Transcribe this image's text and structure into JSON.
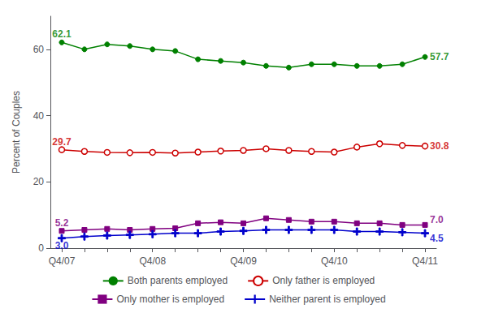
{
  "chart_data": {
    "type": "line",
    "categories": [
      "Q4/07",
      null,
      null,
      null,
      "Q4/08",
      null,
      null,
      null,
      "Q4/09",
      null,
      null,
      null,
      "Q4/10",
      null,
      null,
      null,
      "Q4/11"
    ],
    "series": [
      {
        "name": "Both parents employed",
        "color": "#008000",
        "marker": "circle",
        "values": [
          62.1,
          60.0,
          61.5,
          61.0,
          60.0,
          59.5,
          57.0,
          56.5,
          56.0,
          55.0,
          54.5,
          55.5,
          55.5,
          55.0,
          55.0,
          55.5,
          57.7
        ]
      },
      {
        "name": "Only father is employed",
        "color": "#cc0000",
        "marker": "open_circle",
        "values": [
          29.7,
          29.2,
          28.9,
          28.8,
          28.9,
          28.7,
          29.0,
          29.3,
          29.5,
          30.0,
          29.5,
          29.2,
          29.0,
          30.5,
          31.5,
          31.0,
          30.8
        ]
      },
      {
        "name": "Only mother is employed",
        "color": "#800080",
        "marker": "square",
        "values": [
          5.2,
          5.5,
          5.8,
          5.5,
          5.8,
          6.0,
          7.5,
          7.8,
          7.5,
          9.0,
          8.5,
          8.0,
          8.0,
          7.5,
          7.5,
          7.0,
          7.0
        ]
      },
      {
        "name": "Neither parent is employed",
        "color": "#0000cc",
        "marker": "plus",
        "values": [
          3.0,
          3.5,
          3.8,
          4.0,
          4.2,
          4.5,
          4.5,
          5.0,
          5.2,
          5.5,
          5.5,
          5.5,
          5.5,
          5.0,
          5.0,
          4.8,
          4.5
        ]
      }
    ],
    "ylabel": "Percent of Couples",
    "ylim": [
      0,
      70
    ],
    "yticks": [
      0,
      20,
      40,
      60
    ],
    "grid": false,
    "legend": "bottom",
    "annotations": [
      {
        "text": "62.1",
        "color": "#008000",
        "x": 0,
        "y": 62.1
      },
      {
        "text": "57.7",
        "color": "#008000",
        "x": 16,
        "y": 57.7
      },
      {
        "text": "29.7",
        "color": "#cc0000",
        "x": 0,
        "y": 29.7
      },
      {
        "text": "30.8",
        "color": "#cc0000",
        "x": 16,
        "y": 30.8
      },
      {
        "text": "5.2",
        "color": "#800080",
        "x": 0,
        "y": 5.2
      },
      {
        "text": "7.0",
        "color": "#800080",
        "x": 16,
        "y": 7.0
      },
      {
        "text": "3.0",
        "color": "#0000cc",
        "x": 0,
        "y": 3.0
      },
      {
        "text": "4.5",
        "color": "#0000cc",
        "x": 16,
        "y": 4.5
      }
    ]
  }
}
